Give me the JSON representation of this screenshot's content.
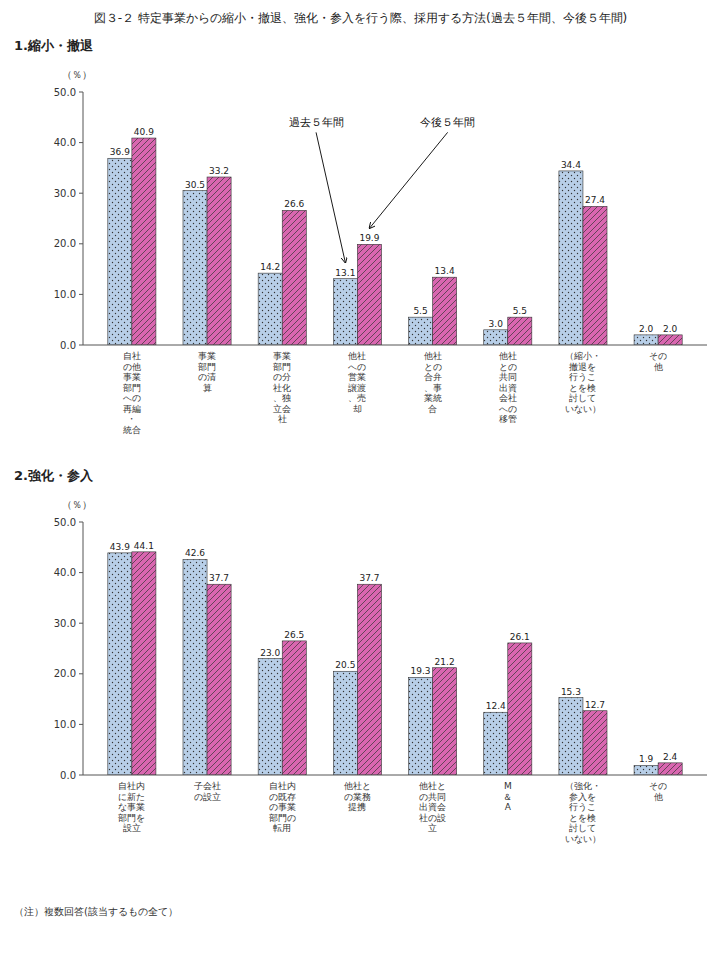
{
  "title": "図３-２ 特定事業からの縮小・撤退、強化・参入を行う際、採用する方法(過去５年間、今後５年間)",
  "note": "（注）複数回答(該当するもの全て）",
  "chart_data": [
    {
      "type": "bar",
      "title": "1.縮小・撤退",
      "ylabel": "（％）",
      "categories": [
        "自社\nの他\n事業\n部門\nへの\n再編\n・\n統合",
        "事業\n部門\nの清\n算",
        "事業\n部門\nの分\n社化\n、独\n立会\n社",
        "他社\nへの\n営業\n譲渡\n、売\n却",
        "他社\nとの\n合弁\n、事\n業統\n合",
        "他社\nとの\n共同\n出資\n会社\nへの\n移管",
        "（縮小・\n撤退を\n行うこ\nとを検\n討して\nいない）",
        "その\n他"
      ],
      "series": [
        {
          "name": "過去５年間",
          "color": "#b8cfe8",
          "values": [
            36.9,
            30.5,
            14.2,
            13.1,
            5.5,
            3.0,
            34.4,
            2.0
          ],
          "value_labels": [
            "36.9",
            "30.5",
            "14.2",
            "13.1",
            "5.5",
            "3.0",
            "34.4",
            "2.0"
          ]
        },
        {
          "name": "今後５年間",
          "color": "#d966b0",
          "values": [
            40.9,
            33.2,
            26.6,
            19.9,
            13.4,
            5.5,
            27.4,
            2.0
          ],
          "value_labels": [
            "40.9",
            "33.2",
            "26.6",
            "19.9",
            "13.4",
            "5.5",
            "27.4",
            "2.0"
          ]
        }
      ],
      "ylim": [
        0,
        50
      ],
      "yticks": [
        {
          "value": 0,
          "label": "0.0"
        },
        {
          "value": 10,
          "label": "10.0"
        },
        {
          "value": 20,
          "label": "20.0"
        },
        {
          "value": 30,
          "label": "30.0"
        },
        {
          "value": 40,
          "label": "40.0"
        },
        {
          "value": 50,
          "label": "50.0"
        }
      ],
      "grid": false,
      "data_labels": true
    },
    {
      "type": "bar",
      "title": "2.強化・参入",
      "ylabel": "（％）",
      "categories": [
        "自社内\nに新た\nな事業\n部門を\n設立",
        "子会社\nの設立",
        "自社内\nの既存\nの事業\n部門の\n転用",
        "他社と\nの業務\n提携",
        "他社と\nの共同\n出資会\n社の設\n立",
        "M\n＆\nA",
        "（強化・\n参入を\n行うこ\nとを検\n討して\nいない）",
        "その\n他"
      ],
      "series": [
        {
          "color": "#b8cfe8",
          "values": [
            43.9,
            42.6,
            23.0,
            20.5,
            19.3,
            12.4,
            15.3,
            1.9
          ],
          "value_labels": [
            "43.9",
            "42.6",
            "23.0",
            "20.5",
            "19.3",
            "12.4",
            "15.3",
            "1.9"
          ]
        },
        {
          "color": "#d966b0",
          "values": [
            44.1,
            37.7,
            26.5,
            37.7,
            21.2,
            26.1,
            12.7,
            2.4
          ],
          "value_labels": [
            "44.1",
            "37.7",
            "26.5",
            "37.7",
            "21.2",
            "26.1",
            "12.7",
            "2.4"
          ]
        }
      ],
      "ylim": [
        0,
        50
      ],
      "yticks": [
        {
          "value": 0,
          "label": "0.0"
        },
        {
          "value": 10,
          "label": "10.0"
        },
        {
          "value": 20,
          "label": "20.0"
        },
        {
          "value": 30,
          "label": "30.0"
        },
        {
          "value": 40,
          "label": "40.0"
        },
        {
          "value": 50,
          "label": "50.0"
        }
      ],
      "grid": false,
      "data_labels": true
    }
  ]
}
